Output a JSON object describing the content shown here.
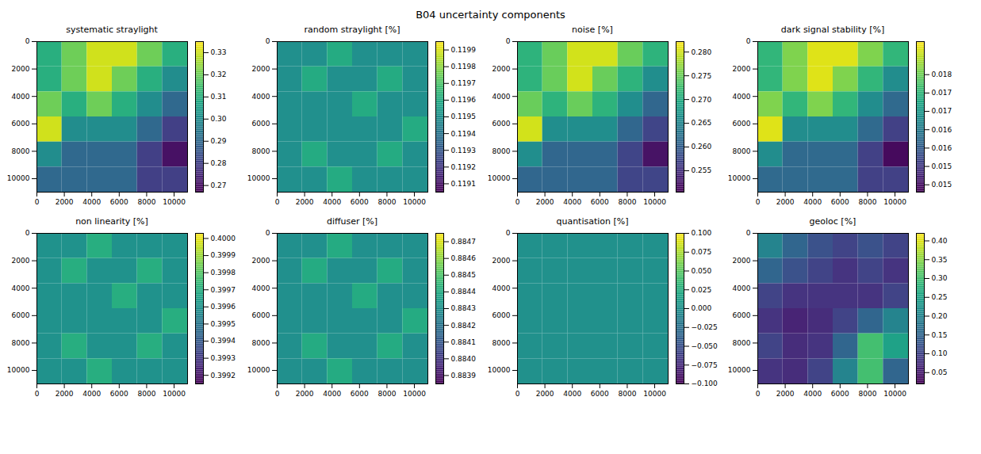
{
  "title": "B04 uncertainty components",
  "chart_data": [
    {
      "type": "heatmap",
      "title": "systematic straylight",
      "color": "viridis",
      "xlim": [
        0,
        10980
      ],
      "ylim": [
        10980,
        0
      ],
      "xticks": [
        0,
        2000,
        4000,
        6000,
        8000,
        10000
      ],
      "yticks": [
        0,
        2000,
        4000,
        6000,
        8000,
        10000
      ],
      "cells": [
        [
          0.31,
          0.32,
          0.33,
          0.33,
          0.32,
          0.31
        ],
        [
          0.31,
          0.32,
          0.33,
          0.32,
          0.31,
          0.3
        ],
        [
          0.32,
          0.31,
          0.32,
          0.31,
          0.3,
          0.29
        ],
        [
          0.33,
          0.3,
          0.3,
          0.3,
          0.29,
          0.28
        ],
        [
          0.3,
          0.29,
          0.29,
          0.29,
          0.28,
          0.27
        ],
        [
          0.29,
          0.29,
          0.29,
          0.29,
          0.28,
          0.28
        ]
      ],
      "colorbar_range": [
        0.267,
        0.335
      ],
      "colorbar_ticks": [
        0.27,
        0.28,
        0.29,
        {
          "value": 0.3,
          "label": "0.30"
        },
        0.31,
        0.32,
        0.33
      ]
    },
    {
      "type": "heatmap",
      "title": "random straylight [%]",
      "color": "viridis",
      "xlim": [
        0,
        10980
      ],
      "ylim": [
        10980,
        0
      ],
      "xticks": [
        0,
        2000,
        4000,
        6000,
        8000,
        10000
      ],
      "yticks": [
        0,
        2000,
        4000,
        6000,
        8000,
        10000
      ],
      "cells": [
        [
          0.1195,
          0.1195,
          0.1196,
          0.1195,
          0.1195,
          0.1195
        ],
        [
          0.1195,
          0.1196,
          0.1195,
          0.1195,
          0.1196,
          0.1195
        ],
        [
          0.1195,
          0.1195,
          0.1195,
          0.1196,
          0.1195,
          0.1195
        ],
        [
          0.1195,
          0.1195,
          0.1195,
          0.1195,
          0.1195,
          0.1196
        ],
        [
          0.1195,
          0.1196,
          0.1195,
          0.1195,
          0.1196,
          0.1195
        ],
        [
          0.1195,
          0.1195,
          0.1196,
          0.1195,
          0.1195,
          0.1195
        ]
      ],
      "colorbar_range": [
        0.11905,
        0.11995
      ],
      "colorbar_ticks": [
        0.1191,
        0.1192,
        0.1193,
        0.1194,
        0.1195,
        0.1196,
        0.1197,
        0.1198,
        0.1199
      ]
    },
    {
      "type": "heatmap",
      "title": "noise [%]",
      "color": "viridis",
      "xlim": [
        0,
        10980
      ],
      "ylim": [
        10980,
        0
      ],
      "xticks": [
        0,
        2000,
        4000,
        6000,
        8000,
        10000
      ],
      "yticks": [
        0,
        2000,
        4000,
        6000,
        8000,
        10000
      ],
      "cells": [
        [
          0.271,
          0.275,
          0.28,
          0.28,
          0.275,
          0.271
        ],
        [
          0.271,
          0.275,
          0.28,
          0.275,
          0.271,
          0.266
        ],
        [
          0.275,
          0.271,
          0.275,
          0.271,
          0.266,
          0.261
        ],
        [
          0.28,
          0.266,
          0.266,
          0.266,
          0.261,
          0.257
        ],
        [
          0.266,
          0.261,
          0.261,
          0.261,
          0.257,
          0.252
        ],
        [
          0.261,
          0.261,
          0.261,
          0.261,
          0.257,
          0.257
        ]
      ],
      "colorbar_range": [
        0.2505,
        0.2822
      ],
      "colorbar_ticks": [
        0.255,
        {
          "value": 0.26,
          "label": "0.260"
        },
        0.265,
        {
          "value": 0.27,
          "label": "0.270"
        },
        0.275,
        {
          "value": 0.28,
          "label": "0.280"
        }
      ]
    },
    {
      "type": "heatmap",
      "title": "dark signal stability [%]",
      "color": "viridis",
      "xlim": [
        0,
        10980
      ],
      "ylim": [
        10980,
        0
      ],
      "xticks": [
        0,
        2000,
        4000,
        6000,
        8000,
        10000
      ],
      "yticks": [
        0,
        2000,
        4000,
        6000,
        8000,
        10000
      ],
      "cells": [
        [
          0.0175,
          0.0181,
          0.0187,
          0.0187,
          0.0181,
          0.0175
        ],
        [
          0.0175,
          0.0181,
          0.0187,
          0.0181,
          0.0175,
          0.0168
        ],
        [
          0.0181,
          0.0175,
          0.0181,
          0.0175,
          0.0168,
          0.0162
        ],
        [
          0.0187,
          0.0168,
          0.0168,
          0.0168,
          0.0162,
          0.0156
        ],
        [
          0.0168,
          0.0162,
          0.0162,
          0.0162,
          0.0156,
          0.0149
        ],
        [
          0.0162,
          0.0162,
          0.0162,
          0.0162,
          0.0156,
          0.0156
        ]
      ],
      "colorbar_range": [
        0.0148,
        0.0189
      ],
      "colorbar_ticks": [
        0.015,
        {
          "value": 0.0155,
          "label": "0.015"
        },
        0.016,
        {
          "value": 0.0165,
          "label": "0.016"
        },
        0.017,
        {
          "value": 0.0175,
          "label": "0.017"
        },
        0.018
      ]
    },
    {
      "type": "heatmap",
      "title": "non linearity [%]",
      "color": "viridis",
      "xlim": [
        0,
        10980
      ],
      "ylim": [
        10980,
        0
      ],
      "xticks": [
        0,
        2000,
        4000,
        6000,
        8000,
        10000
      ],
      "yticks": [
        0,
        2000,
        4000,
        6000,
        8000,
        10000
      ],
      "cells": [
        [
          0.3996,
          0.3996,
          0.3997,
          0.3996,
          0.3996,
          0.3996
        ],
        [
          0.3996,
          0.3997,
          0.3996,
          0.3996,
          0.3997,
          0.3996
        ],
        [
          0.3996,
          0.3996,
          0.3996,
          0.3997,
          0.3996,
          0.3996
        ],
        [
          0.3996,
          0.3996,
          0.3996,
          0.3996,
          0.3996,
          0.3997
        ],
        [
          0.3996,
          0.3997,
          0.3996,
          0.3996,
          0.3997,
          0.3996
        ],
        [
          0.3996,
          0.3996,
          0.3997,
          0.3996,
          0.3996,
          0.3996
        ]
      ],
      "colorbar_range": [
        0.39915,
        0.40003
      ],
      "colorbar_ticks": [
        0.3992,
        0.3993,
        0.3994,
        0.3995,
        0.3996,
        0.3997,
        0.3998,
        0.3999,
        {
          "value": 0.4,
          "label": "0.4000"
        }
      ]
    },
    {
      "type": "heatmap",
      "title": "diffuser [%]",
      "color": "viridis",
      "xlim": [
        0,
        10980
      ],
      "ylim": [
        10980,
        0
      ],
      "xticks": [
        0,
        2000,
        4000,
        6000,
        8000,
        10000
      ],
      "yticks": [
        0,
        2000,
        4000,
        6000,
        8000,
        10000
      ],
      "cells": [
        [
          0.8843,
          0.8843,
          0.8844,
          0.8843,
          0.8843,
          0.8843
        ],
        [
          0.8843,
          0.8844,
          0.8843,
          0.8843,
          0.8844,
          0.8843
        ],
        [
          0.8843,
          0.8843,
          0.8843,
          0.8844,
          0.8843,
          0.8843
        ],
        [
          0.8843,
          0.8843,
          0.8843,
          0.8843,
          0.8843,
          0.8844
        ],
        [
          0.8843,
          0.8844,
          0.8843,
          0.8843,
          0.8844,
          0.8843
        ],
        [
          0.8843,
          0.8843,
          0.8844,
          0.8843,
          0.8843,
          0.8843
        ]
      ],
      "colorbar_range": [
        0.88385,
        0.88475
      ],
      "colorbar_ticks": [
        0.8839,
        {
          "value": 0.884,
          "label": "0.8840"
        },
        0.8841,
        0.8842,
        0.8843,
        0.8844,
        0.8845,
        0.8846,
        0.8847
      ]
    },
    {
      "type": "heatmap",
      "title": "quantisation [%]",
      "color": "viridis",
      "xlim": [
        0,
        10980
      ],
      "ylim": [
        10980,
        0
      ],
      "xticks": [
        0,
        2000,
        4000,
        6000,
        8000,
        10000
      ],
      "yticks": [
        0,
        2000,
        4000,
        6000,
        8000,
        10000
      ],
      "cells": [
        [
          0,
          0,
          0,
          0,
          0,
          0
        ],
        [
          0,
          0,
          0,
          0,
          0,
          0
        ],
        [
          0,
          0,
          0,
          0,
          0,
          0
        ],
        [
          0,
          0,
          0,
          0,
          0,
          0
        ],
        [
          0,
          0,
          0,
          0,
          0,
          0
        ],
        [
          0,
          0,
          0,
          0,
          0,
          0
        ]
      ],
      "colorbar_range": [
        -0.1,
        0.1
      ],
      "colorbar_ticks": [
        {
          "value": -0.1,
          "label": "−0.100"
        },
        {
          "value": -0.075,
          "label": "−0.075"
        },
        {
          "value": -0.05,
          "label": "−0.050"
        },
        {
          "value": -0.025,
          "label": "−0.025"
        },
        {
          "value": 0,
          "label": "0.000"
        },
        0.025,
        {
          "value": 0.05,
          "label": "0.050"
        },
        0.075,
        {
          "value": 0.1,
          "label": "0.100"
        }
      ]
    },
    {
      "type": "heatmap",
      "title": "geoloc [%]",
      "color": "viridis",
      "xlim": [
        0,
        10980
      ],
      "ylim": [
        10980,
        0
      ],
      "xticks": [
        0,
        2000,
        4000,
        6000,
        8000,
        10000
      ],
      "yticks": [
        0,
        2000,
        4000,
        6000,
        8000,
        10000
      ],
      "cells": [
        [
          0.2,
          0.15,
          0.12,
          0.1,
          0.12,
          0.1
        ],
        [
          0.15,
          0.12,
          0.1,
          0.08,
          0.1,
          0.08
        ],
        [
          0.1,
          0.08,
          0.08,
          0.08,
          0.08,
          0.1
        ],
        [
          0.08,
          0.06,
          0.07,
          0.1,
          0.15,
          0.2
        ],
        [
          0.1,
          0.07,
          0.08,
          0.15,
          0.3,
          0.25
        ],
        [
          0.08,
          0.07,
          0.1,
          0.2,
          0.3,
          0.15
        ]
      ],
      "colorbar_range": [
        0.02,
        0.42
      ],
      "colorbar_ticks": [
        0.05,
        {
          "value": 0.1,
          "label": "0.10"
        },
        0.15,
        {
          "value": 0.2,
          "label": "0.20"
        },
        0.25,
        {
          "value": 0.3,
          "label": "0.30"
        },
        0.35,
        {
          "value": 0.4,
          "label": "0.40"
        }
      ]
    }
  ]
}
